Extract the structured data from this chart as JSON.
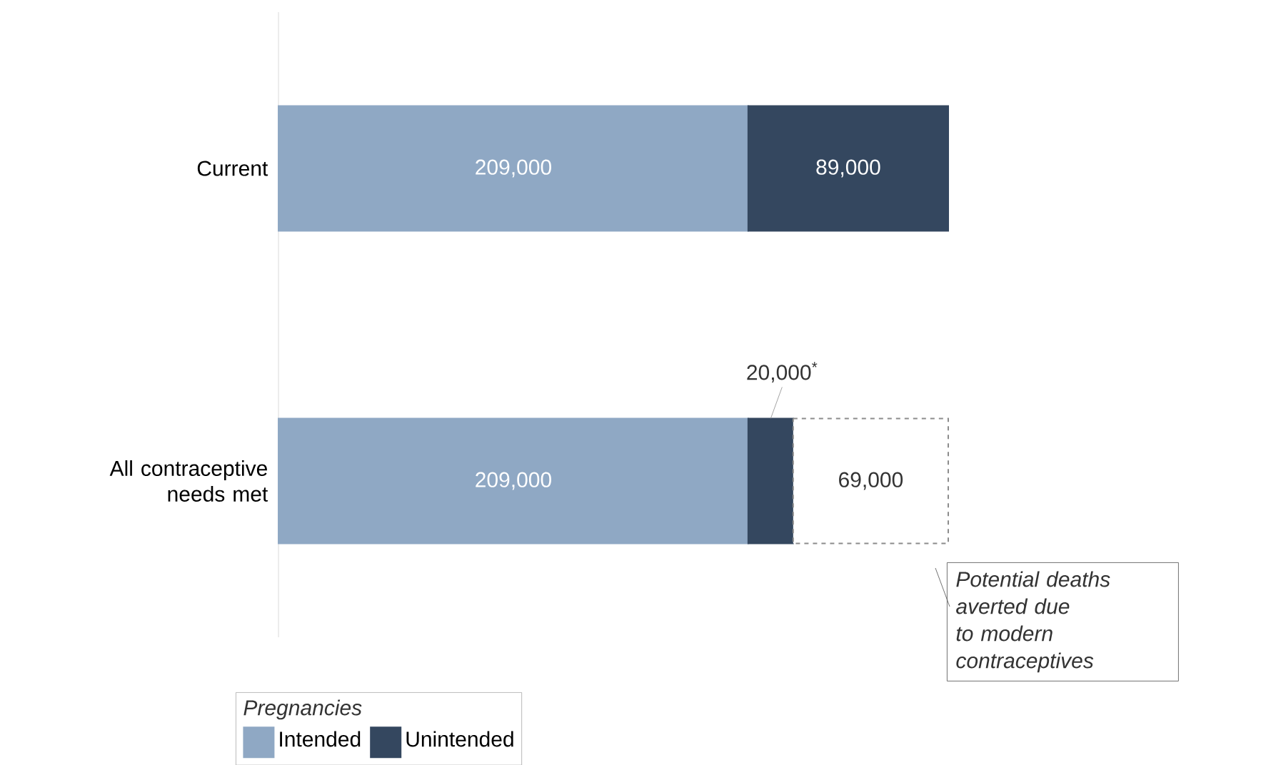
{
  "chart_data": {
    "type": "bar",
    "orientation": "horizontal",
    "stacked": true,
    "categories": [
      "Current",
      "All contraceptive needs met"
    ],
    "legend_title": "Pregnancies",
    "legend": "bottom left",
    "series": [
      {
        "name": "Intended",
        "color": "#8fa8c4",
        "values": [
          209000,
          209000
        ],
        "value_labels": [
          "209,000",
          "209,000"
        ]
      },
      {
        "name": "Unintended",
        "color": "#34475f",
        "values": [
          89000,
          20000
        ],
        "value_labels": [
          "89,000",
          "20,000$^{*}$"
        ]
      },
      {
        "color": "#ffffff",
        "line_style": "dashed",
        "values": [
          null,
          69000
        ],
        "value_labels": [
          null,
          "69,000"
        ]
      }
    ],
    "annotations": [
      "Potential deaths averted due to modern contraceptives"
    ]
  }
}
